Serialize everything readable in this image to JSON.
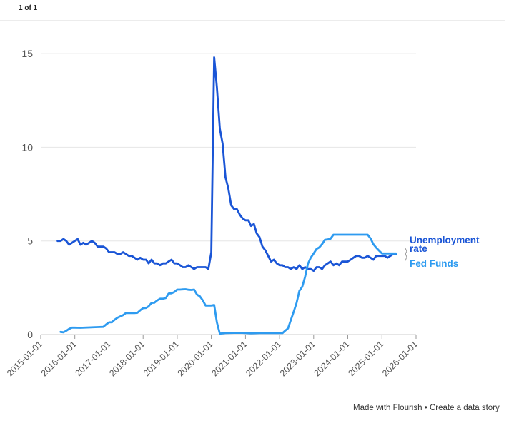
{
  "header": {
    "pager": "1 of 1"
  },
  "footer": {
    "made_with": "Made with Flourish",
    "separator": "•",
    "create": "Create a data story"
  },
  "colors": {
    "unemployment": "#1a55d6",
    "fed_funds": "#2e9bf0",
    "grid": "#e6e6e6",
    "axis": "#cccccc"
  },
  "chart_data": {
    "type": "line",
    "title": "",
    "xlabel": "",
    "ylabel": "",
    "xlim": [
      "2015-01-01",
      "2026-01-01"
    ],
    "ylim": [
      0,
      15.5
    ],
    "y_ticks": [
      "0",
      "5",
      "10",
      "15"
    ],
    "x_ticks": [
      "2015-01-01",
      "2016-01-01",
      "2017-01-01",
      "2018-01-01",
      "2019-01-01",
      "2020-01-01",
      "2021-01-01",
      "2022-01-01",
      "2023-01-01",
      "2024-01-01",
      "2025-01-01",
      "2026-01-01"
    ],
    "grid": "horizontal",
    "legend": "direct labels at right end of lines",
    "series": [
      {
        "name": "Unemployment rate",
        "label_lines": [
          "Unemployment",
          "rate"
        ],
        "color": "#1a55d6",
        "points": [
          [
            "2015-07-01",
            5.0
          ],
          [
            "2015-08-01",
            5.0
          ],
          [
            "2015-09-01",
            5.1
          ],
          [
            "2015-10-01",
            5.0
          ],
          [
            "2015-11-01",
            4.8
          ],
          [
            "2015-12-01",
            4.9
          ],
          [
            "2016-01-01",
            5.0
          ],
          [
            "2016-02-01",
            5.1
          ],
          [
            "2016-03-01",
            4.8
          ],
          [
            "2016-04-01",
            4.9
          ],
          [
            "2016-05-01",
            4.8
          ],
          [
            "2016-06-01",
            4.9
          ],
          [
            "2016-07-01",
            5.0
          ],
          [
            "2016-08-01",
            4.9
          ],
          [
            "2016-09-01",
            4.7
          ],
          [
            "2016-10-01",
            4.7
          ],
          [
            "2016-11-01",
            4.7
          ],
          [
            "2016-12-01",
            4.6
          ],
          [
            "2017-01-01",
            4.4
          ],
          [
            "2017-02-01",
            4.4
          ],
          [
            "2017-03-01",
            4.4
          ],
          [
            "2017-04-01",
            4.3
          ],
          [
            "2017-05-01",
            4.3
          ],
          [
            "2017-06-01",
            4.4
          ],
          [
            "2017-07-01",
            4.3
          ],
          [
            "2017-08-01",
            4.2
          ],
          [
            "2017-09-01",
            4.2
          ],
          [
            "2017-10-01",
            4.1
          ],
          [
            "2017-11-01",
            4.0
          ],
          [
            "2017-12-01",
            4.1
          ],
          [
            "2018-01-01",
            4.0
          ],
          [
            "2018-02-01",
            4.0
          ],
          [
            "2018-03-01",
            3.8
          ],
          [
            "2018-04-01",
            4.0
          ],
          [
            "2018-05-01",
            3.8
          ],
          [
            "2018-06-01",
            3.8
          ],
          [
            "2018-07-01",
            3.7
          ],
          [
            "2018-08-01",
            3.8
          ],
          [
            "2018-09-01",
            3.8
          ],
          [
            "2018-10-01",
            3.9
          ],
          [
            "2018-11-01",
            4.0
          ],
          [
            "2018-12-01",
            3.8
          ],
          [
            "2019-01-01",
            3.8
          ],
          [
            "2019-02-01",
            3.7
          ],
          [
            "2019-03-01",
            3.6
          ],
          [
            "2019-04-01",
            3.6
          ],
          [
            "2019-05-01",
            3.7
          ],
          [
            "2019-06-01",
            3.6
          ],
          [
            "2019-07-01",
            3.5
          ],
          [
            "2019-08-01",
            3.6
          ],
          [
            "2019-09-01",
            3.6
          ],
          [
            "2019-10-01",
            3.6
          ],
          [
            "2019-11-01",
            3.6
          ],
          [
            "2019-12-01",
            3.5
          ],
          [
            "2020-01-01",
            4.4
          ],
          [
            "2020-02-01",
            14.8
          ],
          [
            "2020-03-01",
            13.2
          ],
          [
            "2020-04-01",
            11.0
          ],
          [
            "2020-05-01",
            10.2
          ],
          [
            "2020-06-01",
            8.4
          ],
          [
            "2020-07-01",
            7.8
          ],
          [
            "2020-08-01",
            6.9
          ],
          [
            "2020-09-01",
            6.7
          ],
          [
            "2020-10-01",
            6.7
          ],
          [
            "2020-11-01",
            6.4
          ],
          [
            "2020-12-01",
            6.2
          ],
          [
            "2021-01-01",
            6.1
          ],
          [
            "2021-02-01",
            6.1
          ],
          [
            "2021-03-01",
            5.8
          ],
          [
            "2021-04-01",
            5.9
          ],
          [
            "2021-05-01",
            5.4
          ],
          [
            "2021-06-01",
            5.2
          ],
          [
            "2021-07-01",
            4.7
          ],
          [
            "2021-08-01",
            4.5
          ],
          [
            "2021-09-01",
            4.2
          ],
          [
            "2021-10-01",
            3.9
          ],
          [
            "2021-11-01",
            4.0
          ],
          [
            "2021-12-01",
            3.8
          ],
          [
            "2022-01-01",
            3.7
          ],
          [
            "2022-02-01",
            3.7
          ],
          [
            "2022-03-01",
            3.6
          ],
          [
            "2022-04-01",
            3.6
          ],
          [
            "2022-05-01",
            3.5
          ],
          [
            "2022-06-01",
            3.6
          ],
          [
            "2022-07-01",
            3.5
          ],
          [
            "2022-08-01",
            3.7
          ],
          [
            "2022-09-01",
            3.5
          ],
          [
            "2022-10-01",
            3.6
          ],
          [
            "2022-11-01",
            3.5
          ],
          [
            "2022-12-01",
            3.5
          ],
          [
            "2023-01-01",
            3.4
          ],
          [
            "2023-02-01",
            3.6
          ],
          [
            "2023-03-01",
            3.6
          ],
          [
            "2023-04-01",
            3.5
          ],
          [
            "2023-05-01",
            3.7
          ],
          [
            "2023-06-01",
            3.8
          ],
          [
            "2023-07-01",
            3.9
          ],
          [
            "2023-08-01",
            3.7
          ],
          [
            "2023-09-01",
            3.8
          ],
          [
            "2023-10-01",
            3.7
          ],
          [
            "2023-11-01",
            3.9
          ],
          [
            "2023-12-01",
            3.9
          ],
          [
            "2024-01-01",
            3.9
          ],
          [
            "2024-02-01",
            4.0
          ],
          [
            "2024-03-01",
            4.1
          ],
          [
            "2024-04-01",
            4.2
          ],
          [
            "2024-05-01",
            4.2
          ],
          [
            "2024-06-01",
            4.1
          ],
          [
            "2024-07-01",
            4.1
          ],
          [
            "2024-08-01",
            4.2
          ],
          [
            "2024-09-01",
            4.1
          ],
          [
            "2024-10-01",
            4.0
          ],
          [
            "2024-11-01",
            4.2
          ],
          [
            "2024-12-01",
            4.2
          ],
          [
            "2025-01-01",
            4.2
          ],
          [
            "2025-02-01",
            4.2
          ],
          [
            "2025-03-01",
            4.1
          ],
          [
            "2025-04-01",
            4.2
          ],
          [
            "2025-05-01",
            4.3
          ],
          [
            "2025-06-01",
            4.3
          ]
        ]
      },
      {
        "name": "Fed Funds",
        "label_lines": [
          "Fed Funds"
        ],
        "color": "#2e9bf0",
        "points": [
          [
            "2015-08-01",
            0.14
          ],
          [
            "2015-09-01",
            0.12
          ],
          [
            "2015-10-01",
            0.2
          ],
          [
            "2015-11-01",
            0.3
          ],
          [
            "2015-12-01",
            0.37
          ],
          [
            "2016-01-01",
            0.37
          ],
          [
            "2016-03-01",
            0.36
          ],
          [
            "2016-06-01",
            0.38
          ],
          [
            "2016-09-01",
            0.4
          ],
          [
            "2016-11-01",
            0.41
          ],
          [
            "2016-12-01",
            0.54
          ],
          [
            "2017-01-01",
            0.65
          ],
          [
            "2017-02-01",
            0.66
          ],
          [
            "2017-03-01",
            0.79
          ],
          [
            "2017-04-01",
            0.9
          ],
          [
            "2017-06-01",
            1.04
          ],
          [
            "2017-07-01",
            1.15
          ],
          [
            "2017-10-01",
            1.15
          ],
          [
            "2017-11-01",
            1.16
          ],
          [
            "2017-12-01",
            1.3
          ],
          [
            "2018-01-01",
            1.41
          ],
          [
            "2018-02-01",
            1.42
          ],
          [
            "2018-03-01",
            1.51
          ],
          [
            "2018-04-01",
            1.69
          ],
          [
            "2018-05-01",
            1.7
          ],
          [
            "2018-06-01",
            1.82
          ],
          [
            "2018-07-01",
            1.91
          ],
          [
            "2018-08-01",
            1.91
          ],
          [
            "2018-09-01",
            1.95
          ],
          [
            "2018-10-01",
            2.19
          ],
          [
            "2018-11-01",
            2.2
          ],
          [
            "2018-12-01",
            2.27
          ],
          [
            "2019-01-01",
            2.4
          ],
          [
            "2019-02-01",
            2.4
          ],
          [
            "2019-03-01",
            2.41
          ],
          [
            "2019-04-01",
            2.42
          ],
          [
            "2019-05-01",
            2.39
          ],
          [
            "2019-06-01",
            2.38
          ],
          [
            "2019-07-01",
            2.4
          ],
          [
            "2019-08-01",
            2.13
          ],
          [
            "2019-09-01",
            2.04
          ],
          [
            "2019-10-01",
            1.83
          ],
          [
            "2019-11-01",
            1.55
          ],
          [
            "2019-12-01",
            1.55
          ],
          [
            "2020-01-01",
            1.55
          ],
          [
            "2020-02-01",
            1.58
          ],
          [
            "2020-03-01",
            0.65
          ],
          [
            "2020-04-01",
            0.05
          ],
          [
            "2020-06-01",
            0.08
          ],
          [
            "2020-09-01",
            0.09
          ],
          [
            "2020-12-01",
            0.09
          ],
          [
            "2021-03-01",
            0.07
          ],
          [
            "2021-06-01",
            0.08
          ],
          [
            "2021-09-01",
            0.08
          ],
          [
            "2021-12-01",
            0.08
          ],
          [
            "2022-02-01",
            0.08
          ],
          [
            "2022-03-01",
            0.2
          ],
          [
            "2022-04-01",
            0.33
          ],
          [
            "2022-05-01",
            0.77
          ],
          [
            "2022-06-01",
            1.21
          ],
          [
            "2022-07-01",
            1.68
          ],
          [
            "2022-08-01",
            2.33
          ],
          [
            "2022-09-01",
            2.56
          ],
          [
            "2022-10-01",
            3.08
          ],
          [
            "2022-11-01",
            3.78
          ],
          [
            "2022-12-01",
            4.1
          ],
          [
            "2023-01-01",
            4.33
          ],
          [
            "2023-02-01",
            4.57
          ],
          [
            "2023-03-01",
            4.65
          ],
          [
            "2023-04-01",
            4.83
          ],
          [
            "2023-05-01",
            5.06
          ],
          [
            "2023-06-01",
            5.08
          ],
          [
            "2023-07-01",
            5.12
          ],
          [
            "2023-08-01",
            5.33
          ],
          [
            "2023-10-01",
            5.33
          ],
          [
            "2024-01-01",
            5.33
          ],
          [
            "2024-04-01",
            5.33
          ],
          [
            "2024-07-01",
            5.33
          ],
          [
            "2024-08-01",
            5.33
          ],
          [
            "2024-09-01",
            5.13
          ],
          [
            "2024-10-01",
            4.83
          ],
          [
            "2024-11-01",
            4.64
          ],
          [
            "2024-12-01",
            4.48
          ],
          [
            "2025-01-01",
            4.33
          ],
          [
            "2025-03-01",
            4.33
          ],
          [
            "2025-06-01",
            4.33
          ]
        ]
      }
    ]
  }
}
